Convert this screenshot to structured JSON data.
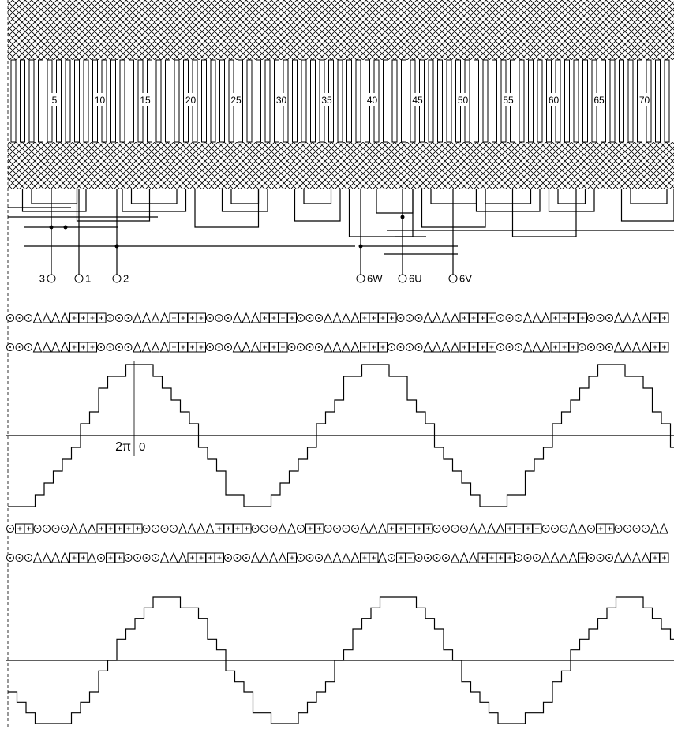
{
  "slot_numbers": [
    "5",
    "10",
    "15",
    "20",
    "25",
    "30",
    "35",
    "40",
    "45",
    "50",
    "55",
    "60",
    "65",
    "70"
  ],
  "terminals": [
    "3",
    "1",
    "2",
    "6W",
    "6U",
    "6V"
  ],
  "phase_marks": {
    "left": "2π",
    "right": "0"
  }
}
